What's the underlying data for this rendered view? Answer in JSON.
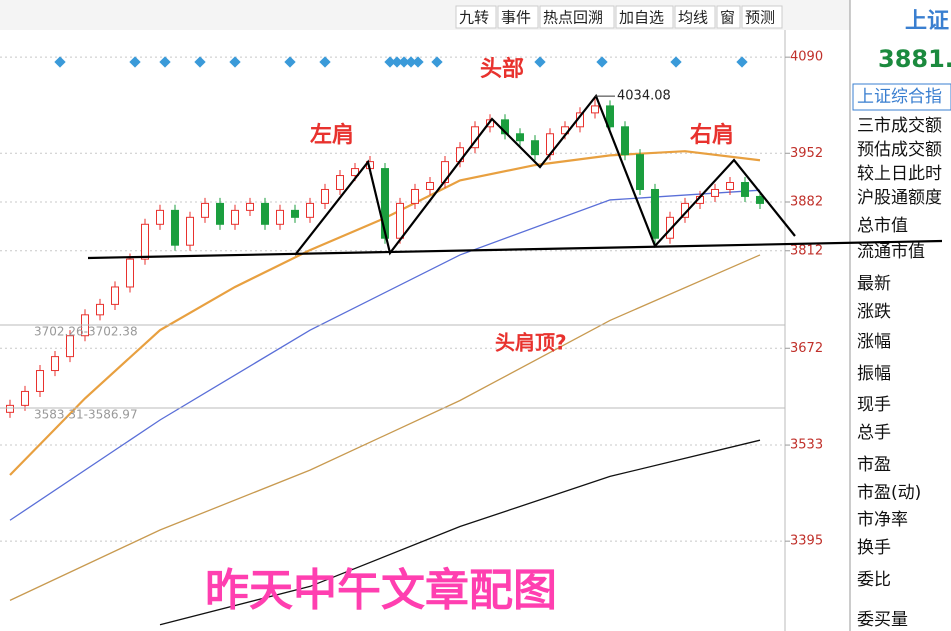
{
  "chart_data": {
    "type": "candlestick",
    "open": [
      3580,
      3590,
      3610,
      3640,
      3660,
      3690,
      3720,
      3735,
      3760,
      3800,
      3850,
      3870,
      3820,
      3860,
      3880,
      3850,
      3870,
      3880,
      3850,
      3870,
      3860,
      3880,
      3900,
      3920,
      3930,
      3930,
      3830,
      3880,
      3900,
      3910,
      3940,
      3960,
      3990,
      4000,
      3980,
      3970,
      3950,
      3980,
      3990,
      4010,
      4020,
      3990,
      3950,
      3900,
      3830,
      3860,
      3880,
      3890,
      3900,
      3910,
      3890
    ],
    "high": [
      3598,
      3618,
      3648,
      3668,
      3698,
      3728,
      3743,
      3768,
      3808,
      3858,
      3878,
      3878,
      3868,
      3888,
      3888,
      3878,
      3888,
      3888,
      3878,
      3878,
      3888,
      3908,
      3928,
      3938,
      3948,
      3938,
      3888,
      3908,
      3918,
      3948,
      3968,
      3998,
      4008,
      4008,
      3988,
      3978,
      3988,
      3998,
      4018,
      4034.08,
      4028,
      3998,
      3958,
      3908,
      3868,
      3888,
      3898,
      3908,
      3918,
      3918,
      3898
    ],
    "low": [
      3572,
      3582,
      3602,
      3632,
      3652,
      3682,
      3712,
      3727,
      3752,
      3792,
      3842,
      3812,
      3812,
      3852,
      3842,
      3842,
      3862,
      3842,
      3842,
      3852,
      3852,
      3872,
      3892,
      3912,
      3922,
      3822,
      3822,
      3872,
      3892,
      3902,
      3932,
      3952,
      3982,
      3972,
      3962,
      3942,
      3942,
      3972,
      3982,
      4002,
      3982,
      3942,
      3892,
      3822,
      3822,
      3852,
      3872,
      3882,
      3892,
      3882,
      3872
    ],
    "close": [
      3590,
      3610,
      3640,
      3660,
      3690,
      3720,
      3735,
      3760,
      3800,
      3850,
      3870,
      3820,
      3860,
      3880,
      3850,
      3870,
      3880,
      3850,
      3870,
      3860,
      3880,
      3900,
      3920,
      3930,
      3940,
      3830,
      3880,
      3900,
      3910,
      3940,
      3960,
      3990,
      4000,
      3980,
      3970,
      3950,
      3980,
      3990,
      4010,
      4020,
      3990,
      3950,
      3900,
      3830,
      3860,
      3880,
      3890,
      3900,
      3910,
      3890,
      3880
    ],
    "up_color": "#e8322e",
    "down_color": "#1b9e3e",
    "moving_averages": [
      {
        "color": "#e8a040",
        "values": [
          3490,
          3600,
          3698,
          3760,
          3813,
          3859,
          3913,
          3935,
          3949,
          3955,
          3942
        ]
      },
      {
        "color": "#5a6fd8",
        "values": [
          3425,
          3569,
          3698,
          3806,
          3885,
          3899
        ]
      },
      {
        "color": "#c89a50",
        "values": [
          3310,
          3411,
          3497,
          3597,
          3712,
          3806
        ]
      },
      {
        "color": "#111111",
        "values": [
          null,
          3275,
          3330,
          3416,
          3488,
          3540
        ]
      }
    ],
    "ylim": [
      3266,
      4129
    ],
    "yticks": [
      4090,
      3952,
      3882,
      3812,
      3672,
      3533,
      3395
    ],
    "grid": true,
    "annotations": [
      "头部",
      "左肩",
      "右肩",
      "头肩顶?",
      "昨天中午文章配图"
    ],
    "range_labels": [
      "3702.26-3702.38",
      "3583.31-3586.97"
    ]
  },
  "toolbar": [
    "九转",
    "事件",
    "热点回溯",
    "加自选",
    "均线",
    "窗",
    "预测"
  ],
  "info_panel": {
    "name": "上证",
    "price": "3881.",
    "full_name": "上证综合指",
    "rows": [
      "三市成交额",
      "预估成交额",
      "较上日此时",
      "沪股通额度",
      "总市值",
      "流通市值",
      "最新",
      "涨跌",
      "涨幅",
      "振幅",
      "现手",
      "总手",
      "市盈",
      "市盈(动)",
      "市净率",
      "换手",
      "委比",
      "委买量"
    ]
  }
}
